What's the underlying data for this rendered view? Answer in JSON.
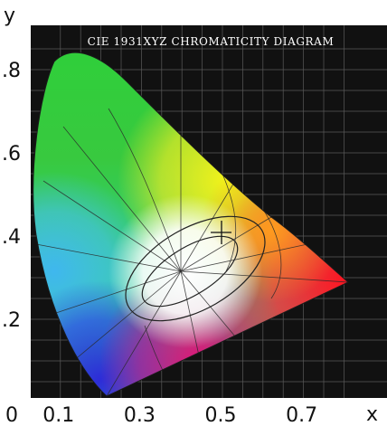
{
  "diagram": {
    "title": "CIE 1931XYZ CHROMATICITY DIAGRAM"
  },
  "axes": {
    "x_label": "x",
    "y_label": "y",
    "x_ticks": [
      {
        "value": 0,
        "label": "0"
      },
      {
        "value": 0.1,
        "label": "0.1"
      },
      {
        "value": 0.3,
        "label": "0.3"
      },
      {
        "value": 0.5,
        "label": "0.5"
      },
      {
        "value": 0.7,
        "label": "0.7"
      }
    ],
    "y_ticks": [
      {
        "value": 0.8,
        "label": ".8"
      },
      {
        "value": 0.6,
        "label": ".6"
      },
      {
        "value": 0.4,
        "label": ".4"
      },
      {
        "value": 0.2,
        "label": ".2"
      }
    ]
  },
  "colors": {
    "panel_background": "#111111",
    "grid_lines": "#5a5a5a",
    "region_lines": "#2a2a2a"
  }
}
